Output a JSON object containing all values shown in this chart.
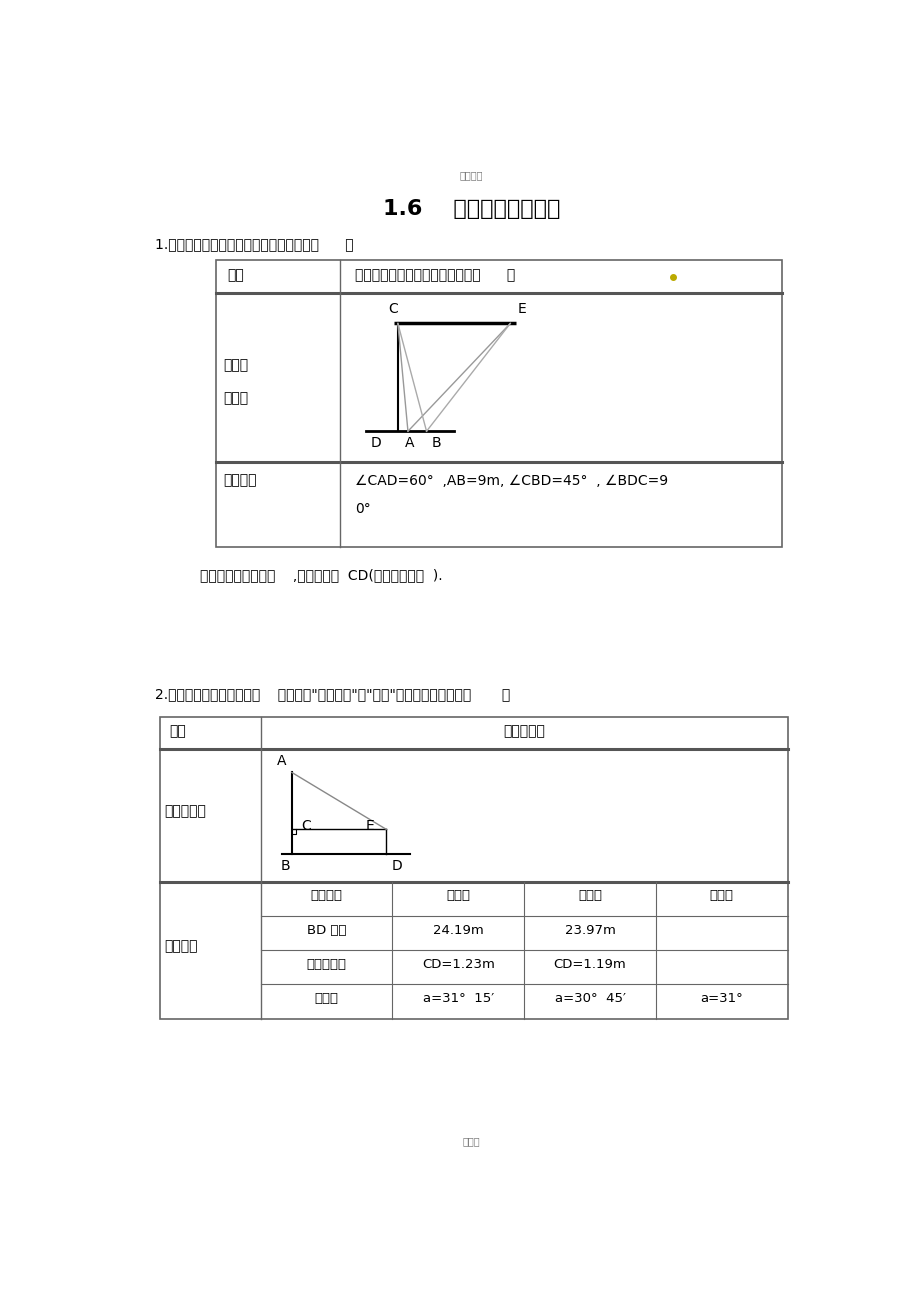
{
  "bg_color": "#ffffff",
  "page_width": 9.2,
  "page_height": 13.03,
  "top_watermark": "精品教案",
  "bottom_watermark": "可编辑",
  "main_title": "1.6    利用三角函数测高",
  "q1_label": "1.下表是小明同学填写活动报告的部分内容      ：",
  "q1_row1_label": "课题",
  "q1_row1_content": "在两岸近似平行的河段上测量河宽      。",
  "q1_row2_label1": "测量目",
  "q1_row2_label2": "标图示",
  "q1_row3_label": "测得数据",
  "q1_row3_line1": "∠CAD=60°  ,AB=9m, ∠CBD=45°  , ∠BDC=9",
  "q1_row3_line2": "0°",
  "q1_note": "请你根据以上的条件    ,计算出河宽  CD(结果保留根号  ).",
  "q2_label": "2.下面是活动报告的一部分    ，请填写\"测得数据\"和\"计算\"两栏中未完成的部分       。",
  "q2_row1_label": "课题",
  "q2_row1_content": "测量旗杆高",
  "q2_row2_label": "测量示意图",
  "q2_row3_label": "测得数据",
  "q2_headers": [
    "测量项目",
    "第一次",
    "第二次",
    "平均值"
  ],
  "q2_data": [
    [
      "BD 的长",
      "24.19m",
      "23.97m",
      ""
    ],
    [
      "测倾器的高",
      "CD=1.23m",
      "CD=1.19m",
      ""
    ],
    [
      "倾斜角",
      "a=31°  15′",
      "a=30°  45′",
      "a=31°"
    ]
  ]
}
